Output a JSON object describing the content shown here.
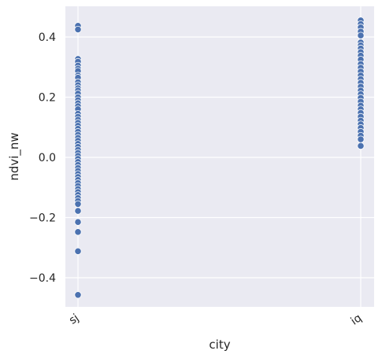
{
  "chart_data": {
    "type": "scatter",
    "title": "",
    "xlabel": "city",
    "ylabel": "ndvi_nw",
    "categories": [
      "sj",
      "iq"
    ],
    "ylim": [
      -0.5,
      0.5
    ],
    "yticks": [
      -0.4,
      -0.2,
      0.0,
      0.2,
      0.4
    ],
    "ytick_labels": [
      "−0.4",
      "−0.2",
      "0.0",
      "0.2",
      "0.4"
    ],
    "grid": true,
    "background_color": "#eaeaf2",
    "grid_color": "#ffffff",
    "marker_color": "#4c72b0",
    "marker_edge_color": "#ffffff",
    "series": [
      {
        "category": "sj",
        "values": [
          0.437,
          0.425,
          0.327,
          0.318,
          0.305,
          0.295,
          0.287,
          0.272,
          0.265,
          0.25,
          0.24,
          0.23,
          0.222,
          0.212,
          0.2,
          0.19,
          0.18,
          0.17,
          0.16,
          0.145,
          0.135,
          0.125,
          0.115,
          0.105,
          0.095,
          0.085,
          0.075,
          0.065,
          0.055,
          0.045,
          0.035,
          0.025,
          0.015,
          0.005,
          -0.005,
          -0.015,
          -0.025,
          -0.035,
          -0.045,
          -0.055,
          -0.065,
          -0.075,
          -0.085,
          -0.095,
          -0.105,
          -0.115,
          -0.125,
          -0.135,
          -0.145,
          -0.155,
          -0.178,
          -0.215,
          -0.248,
          -0.312,
          -0.457
        ]
      },
      {
        "category": "iq",
        "values": [
          0.455,
          0.443,
          0.432,
          0.418,
          0.405,
          0.382,
          0.372,
          0.362,
          0.35,
          0.338,
          0.325,
          0.31,
          0.298,
          0.285,
          0.272,
          0.26,
          0.248,
          0.235,
          0.222,
          0.21,
          0.198,
          0.185,
          0.172,
          0.16,
          0.148,
          0.135,
          0.122,
          0.11,
          0.098,
          0.085,
          0.072,
          0.06,
          0.038
        ]
      }
    ]
  }
}
